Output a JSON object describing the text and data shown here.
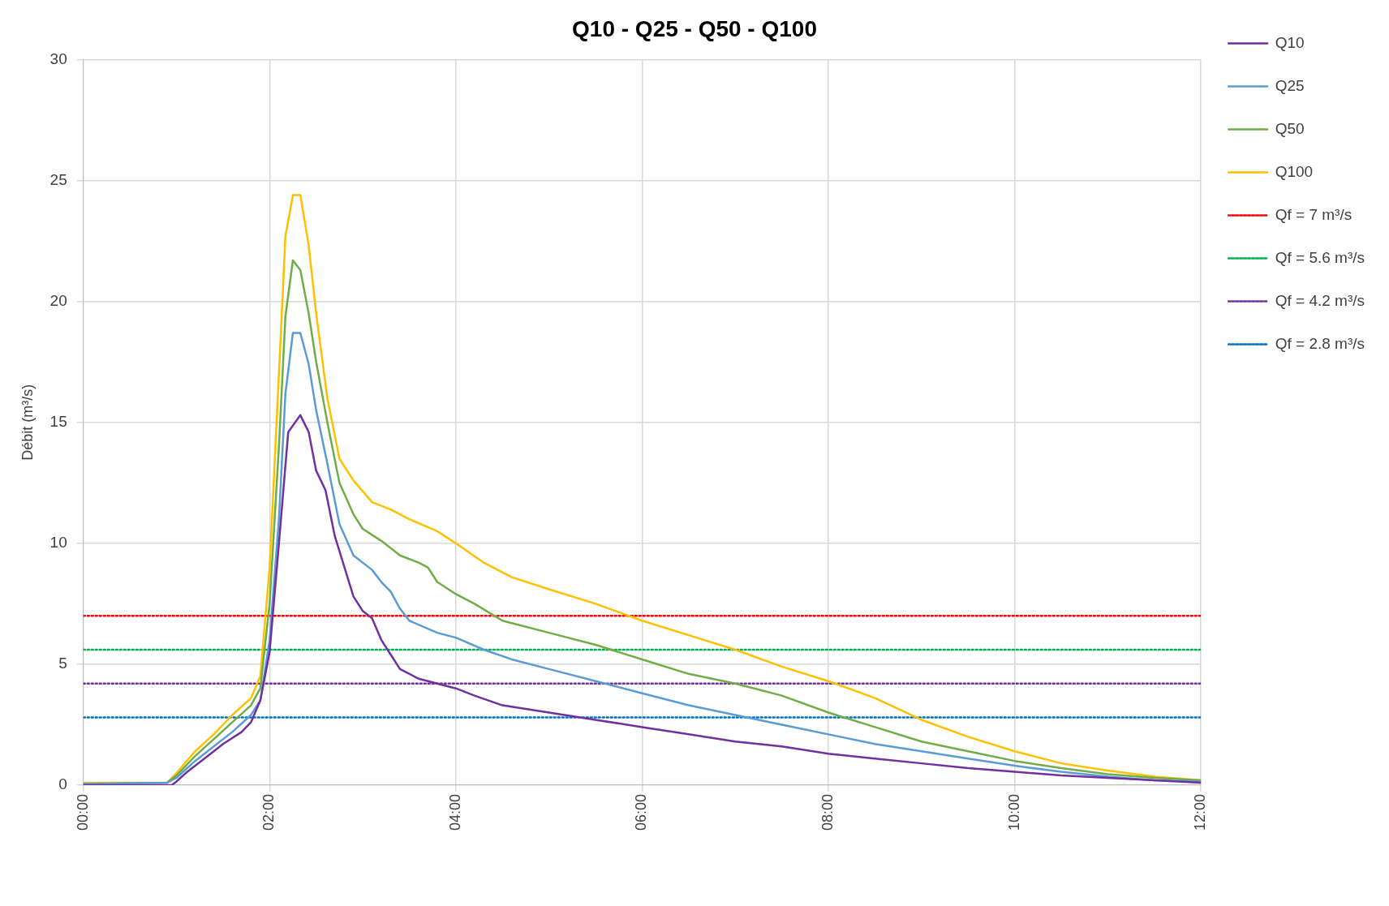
{
  "chart_data": {
    "type": "line",
    "title": "Q10 - Q25 - Q50 - Q100",
    "ylabel": "Débit (m³/s)",
    "xlim": [
      0,
      12
    ],
    "xticks": [
      {
        "value": 0,
        "label": "00:00"
      },
      {
        "value": 2,
        "label": "02:00"
      },
      {
        "value": 4,
        "label": "04:00"
      },
      {
        "value": 6,
        "label": "06:00"
      },
      {
        "value": 8,
        "label": "08:00"
      },
      {
        "value": 10,
        "label": "10:00"
      },
      {
        "value": 12,
        "label": "12:00"
      }
    ],
    "ylim": [
      0,
      30
    ],
    "yticks": [
      0,
      5,
      10,
      15,
      20,
      25,
      30
    ],
    "grid": true,
    "legend": "right",
    "marker": "none",
    "line_style": "solid",
    "series": [
      {
        "name": "Q10",
        "color": "#7030a0",
        "x": [
          0,
          0.95,
          1,
          1.1,
          1.3,
          1.5,
          1.7,
          1.8,
          1.9,
          2,
          2.1,
          2.2,
          2.33,
          2.42,
          2.5,
          2.6,
          2.7,
          2.9,
          3,
          3.1,
          3.2,
          3.3,
          3.4,
          3.6,
          4,
          4.2,
          4.5,
          5,
          5.5,
          6,
          6.5,
          7,
          7.5,
          8,
          8.5,
          9,
          9.5,
          10,
          10.5,
          11,
          11.5,
          12
        ],
        "values": [
          0,
          0,
          0.15,
          0.5,
          1.1,
          1.7,
          2.2,
          2.6,
          3.5,
          5.5,
          10,
          14.6,
          15.3,
          14.6,
          13,
          12.2,
          10.3,
          7.8,
          7.2,
          6.9,
          6,
          5.4,
          4.8,
          4.4,
          4,
          3.7,
          3.3,
          3,
          2.7,
          2.4,
          2.1,
          1.8,
          1.6,
          1.3,
          1.1,
          0.9,
          0.7,
          0.55,
          0.4,
          0.3,
          0.2,
          0.1
        ]
      },
      {
        "name": "Q25",
        "color": "#5b9bd5",
        "x": [
          0,
          0.9,
          1,
          1.2,
          1.4,
          1.6,
          1.8,
          1.9,
          2,
          2.1,
          2.17,
          2.25,
          2.33,
          2.42,
          2.5,
          2.62,
          2.75,
          2.9,
          3.1,
          3.2,
          3.3,
          3.4,
          3.5,
          3.8,
          4,
          4.3,
          4.6,
          5,
          5.5,
          6,
          6.5,
          7,
          7.5,
          8,
          8.5,
          9,
          9.5,
          10,
          10.5,
          11,
          11.5,
          12
        ],
        "values": [
          0.05,
          0.1,
          0.3,
          1,
          1.6,
          2.2,
          2.9,
          3.5,
          6,
          11,
          16.2,
          18.7,
          18.7,
          17.4,
          15.5,
          13.3,
          10.8,
          9.5,
          8.9,
          8.4,
          8,
          7.3,
          6.8,
          6.3,
          6.1,
          5.6,
          5.2,
          4.8,
          4.3,
          3.8,
          3.3,
          2.9,
          2.5,
          2.1,
          1.7,
          1.4,
          1.1,
          0.8,
          0.55,
          0.35,
          0.2,
          0.15
        ]
      },
      {
        "name": "Q50",
        "color": "#70ad47",
        "x": [
          0,
          0.9,
          1,
          1.2,
          1.4,
          1.6,
          1.8,
          1.9,
          2,
          2.1,
          2.17,
          2.25,
          2.33,
          2.42,
          2.5,
          2.62,
          2.75,
          2.9,
          3,
          3.2,
          3.4,
          3.6,
          3.7,
          3.8,
          4,
          4.2,
          4.5,
          5,
          5.5,
          6,
          6.5,
          7,
          7.5,
          8,
          8.5,
          9,
          9.5,
          10,
          10.5,
          11,
          11.5,
          12
        ],
        "values": [
          0.05,
          0.1,
          0.4,
          1.2,
          1.9,
          2.6,
          3.3,
          4,
          7.5,
          14,
          19.4,
          21.7,
          21.3,
          19.5,
          17.5,
          15,
          12.5,
          11.2,
          10.6,
          10.1,
          9.5,
          9.2,
          9,
          8.4,
          7.9,
          7.5,
          6.8,
          6.3,
          5.8,
          5.2,
          4.6,
          4.2,
          3.7,
          3,
          2.4,
          1.8,
          1.4,
          1,
          0.7,
          0.45,
          0.3,
          0.2
        ]
      },
      {
        "name": "Q100",
        "color": "#ffc000",
        "x": [
          0,
          0.9,
          1,
          1.2,
          1.4,
          1.6,
          1.8,
          1.9,
          2,
          2.1,
          2.17,
          2.25,
          2.33,
          2.42,
          2.5,
          2.62,
          2.75,
          2.9,
          3.1,
          3.3,
          3.5,
          3.8,
          4,
          4.3,
          4.6,
          5,
          5.5,
          6,
          6.5,
          7,
          7.5,
          8,
          8.5,
          9,
          9.5,
          10,
          10.5,
          11,
          11.5,
          12
        ],
        "values": [
          0.1,
          0.1,
          0.5,
          1.4,
          2.1,
          2.9,
          3.6,
          4.5,
          9,
          17,
          22.7,
          24.4,
          24.4,
          22.3,
          19.5,
          16,
          13.5,
          12.6,
          11.7,
          11.4,
          11,
          10.5,
          10,
          9.2,
          8.6,
          8.1,
          7.5,
          6.8,
          6.2,
          5.6,
          4.9,
          4.3,
          3.6,
          2.7,
          2,
          1.4,
          0.9,
          0.6,
          0.35,
          0.2
        ]
      },
      {
        "name": "Qf = 7 m³/s",
        "color": "#ff0000",
        "line_style": "dotted",
        "x": [
          0,
          12
        ],
        "values": [
          7,
          7
        ]
      },
      {
        "name": "Qf = 5.6 m³/s",
        "color": "#00b050",
        "line_style": "dotted",
        "x": [
          0,
          12
        ],
        "values": [
          5.6,
          5.6
        ]
      },
      {
        "name": "Qf = 4.2 m³/s",
        "color": "#7030a0",
        "line_style": "dotted",
        "x": [
          0,
          12
        ],
        "values": [
          4.2,
          4.2
        ]
      },
      {
        "name": "Qf = 2.8 m³/s",
        "color": "#0070c0",
        "line_style": "dotted",
        "x": [
          0,
          12
        ],
        "values": [
          2.8,
          2.8
        ]
      }
    ]
  }
}
